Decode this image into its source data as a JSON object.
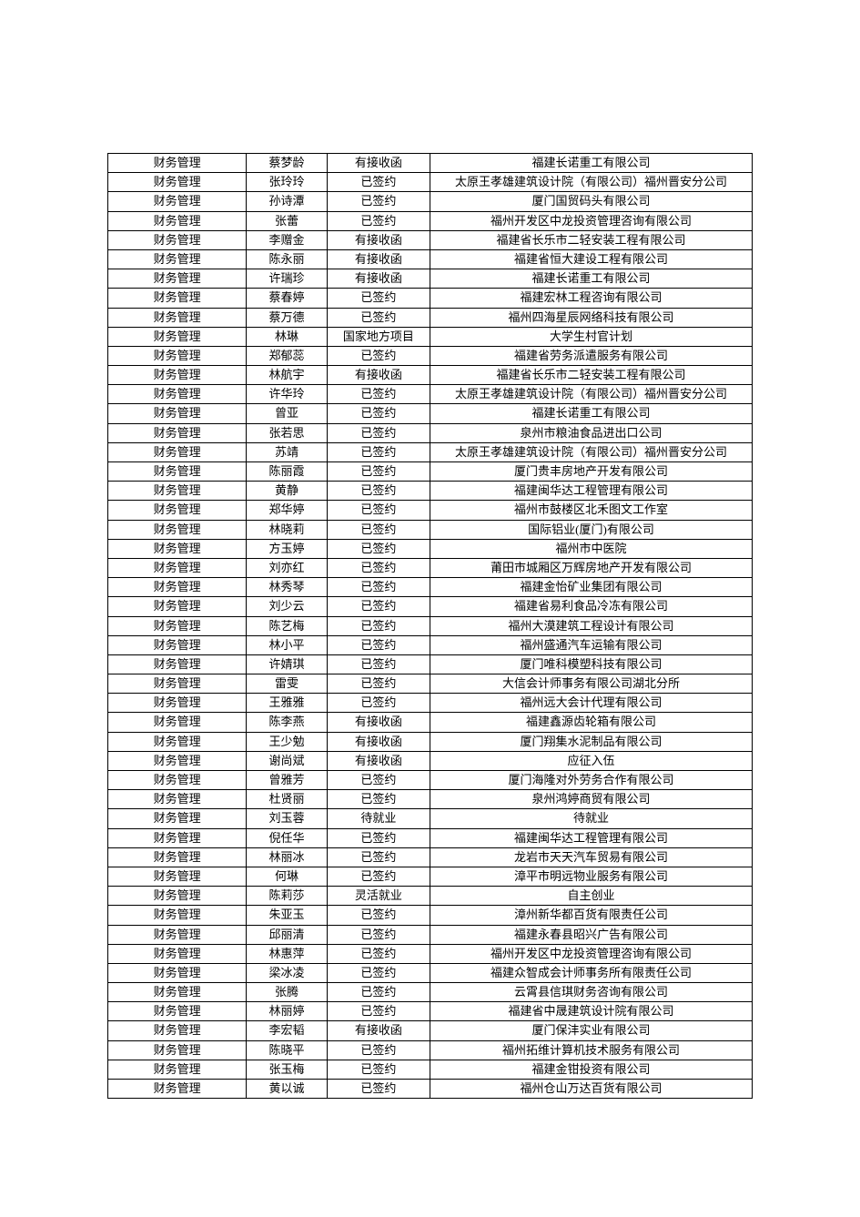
{
  "table": {
    "columns": [
      "major",
      "name",
      "status",
      "company"
    ],
    "col_widths_pct": [
      21.5,
      12.5,
      16,
      50
    ],
    "border_color": "#000000",
    "text_color": "#000000",
    "font_size_pt": 10,
    "background_color": "#ffffff",
    "rows": [
      [
        "财务管理",
        "蔡梦龄",
        "有接收函",
        "福建长诺重工有限公司"
      ],
      [
        "财务管理",
        "张玲玲",
        "已签约",
        "太原王孝雄建筑设计院（有限公司）福州晋安分公司"
      ],
      [
        "财务管理",
        "孙诗潭",
        "已签约",
        "厦门国贸码头有限公司"
      ],
      [
        "财务管理",
        "张蕾",
        "已签约",
        "福州开发区中龙投资管理咨询有限公司"
      ],
      [
        "财务管理",
        "李赠金",
        "有接收函",
        "福建省长乐市二轻安装工程有限公司"
      ],
      [
        "财务管理",
        "陈永丽",
        "有接收函",
        "福建省恒大建设工程有限公司"
      ],
      [
        "财务管理",
        "许瑞珍",
        "有接收函",
        "福建长诺重工有限公司"
      ],
      [
        "财务管理",
        "蔡春婷",
        "已签约",
        "福建宏林工程咨询有限公司"
      ],
      [
        "财务管理",
        "蔡万德",
        "已签约",
        "福州四海星辰网络科技有限公司"
      ],
      [
        "财务管理",
        "林琳",
        "国家地方项目",
        "大学生村官计划"
      ],
      [
        "财务管理",
        "郑郁蕊",
        "已签约",
        "福建省劳务派遣服务有限公司"
      ],
      [
        "财务管理",
        "林航宇",
        "有接收函",
        "福建省长乐市二轻安装工程有限公司"
      ],
      [
        "财务管理",
        "许华玲",
        "已签约",
        "太原王孝雄建筑设计院（有限公司）福州晋安分公司"
      ],
      [
        "财务管理",
        "曾亚",
        "已签约",
        "福建长诺重工有限公司"
      ],
      [
        "财务管理",
        "张若思",
        "已签约",
        "泉州市粮油食品进出口公司"
      ],
      [
        "财务管理",
        "苏靖",
        "已签约",
        "太原王孝雄建筑设计院（有限公司）福州晋安分公司"
      ],
      [
        "财务管理",
        "陈丽霞",
        "已签约",
        "厦门贵丰房地产开发有限公司"
      ],
      [
        "财务管理",
        "黄静",
        "已签约",
        "福建闽华达工程管理有限公司"
      ],
      [
        "财务管理",
        "郑华婷",
        "已签约",
        "福州市鼓楼区北禾图文工作室"
      ],
      [
        "财务管理",
        "林晓莉",
        "已签约",
        "国际铝业(厦门)有限公司"
      ],
      [
        "财务管理",
        "方玉婷",
        "已签约",
        "福州市中医院"
      ],
      [
        "财务管理",
        "刘亦红",
        "已签约",
        "莆田市城厢区万辉房地产开发有限公司"
      ],
      [
        "财务管理",
        "林秀琴",
        "已签约",
        "福建金怡矿业集团有限公司"
      ],
      [
        "财务管理",
        "刘少云",
        "已签约",
        "福建省易利食品冷冻有限公司"
      ],
      [
        "财务管理",
        "陈艺梅",
        "已签约",
        "福州大漠建筑工程设计有限公司"
      ],
      [
        "财务管理",
        "林小平",
        "已签约",
        "福州盛通汽车运输有限公司"
      ],
      [
        "财务管理",
        "许婧琪",
        "已签约",
        "厦门唯科模塑科技有限公司"
      ],
      [
        "财务管理",
        "雷雯",
        "已签约",
        "大信会计师事务有限公司湖北分所"
      ],
      [
        "财务管理",
        "王雅雅",
        "已签约",
        "福州远大会计代理有限公司"
      ],
      [
        "财务管理",
        "陈李燕",
        "有接收函",
        "福建鑫源齿轮箱有限公司"
      ],
      [
        "财务管理",
        "王少勉",
        "有接收函",
        "厦门翔集水泥制品有限公司"
      ],
      [
        "财务管理",
        "谢尚斌",
        "有接收函",
        "应征入伍"
      ],
      [
        "财务管理",
        "曾雅芳",
        "已签约",
        "厦门海隆对外劳务合作有限公司"
      ],
      [
        "财务管理",
        "杜贤丽",
        "已签约",
        "泉州鸿婷商贸有限公司"
      ],
      [
        "财务管理",
        "刘玉蓉",
        "待就业",
        "待就业"
      ],
      [
        "财务管理",
        "倪任华",
        "已签约",
        "福建闽华达工程管理有限公司"
      ],
      [
        "财务管理",
        "林丽冰",
        "已签约",
        "龙岩市天天汽车贸易有限公司"
      ],
      [
        "财务管理",
        "何琳",
        "已签约",
        "漳平市明远物业服务有限公司"
      ],
      [
        "财务管理",
        "陈莉莎",
        "灵活就业",
        "自主创业"
      ],
      [
        "财务管理",
        "朱亚玉",
        "已签约",
        "漳州新华都百货有限责任公司"
      ],
      [
        "财务管理",
        "邱丽清",
        "已签约",
        "福建永春县昭兴广告有限公司"
      ],
      [
        "财务管理",
        "林惠萍",
        "已签约",
        "福州开发区中龙投资管理咨询有限公司"
      ],
      [
        "财务管理",
        "梁冰凌",
        "已签约",
        "福建众智成会计师事务所有限责任公司"
      ],
      [
        "财务管理",
        "张腾",
        "已签约",
        "云霄县信琪财务咨询有限公司"
      ],
      [
        "财务管理",
        "林丽婷",
        "已签约",
        "福建省中晟建筑设计院有限公司"
      ],
      [
        "财务管理",
        "李宏韬",
        "有接收函",
        "厦门保沣实业有限公司"
      ],
      [
        "财务管理",
        "陈晓平",
        "已签约",
        "福州拓维计算机技术服务有限公司"
      ],
      [
        "财务管理",
        "张玉梅",
        "已签约",
        "福建金钳投资有限公司"
      ],
      [
        "财务管理",
        "黄以诚",
        "已签约",
        "福州仓山万达百货有限公司"
      ]
    ]
  }
}
